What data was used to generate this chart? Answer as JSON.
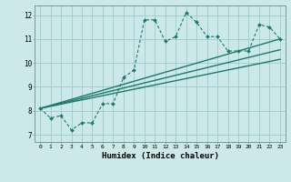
{
  "xlabel": "Humidex (Indice chaleur)",
  "bg_color": "#cce8e8",
  "grid_color": "#99cccc",
  "line_color": "#1a7a6a",
  "xlim": [
    -0.5,
    23.5
  ],
  "ylim": [
    6.7,
    12.4
  ],
  "xticks": [
    0,
    1,
    2,
    3,
    4,
    5,
    6,
    7,
    8,
    9,
    10,
    11,
    12,
    13,
    14,
    15,
    16,
    17,
    18,
    19,
    20,
    21,
    22,
    23
  ],
  "yticks": [
    7,
    8,
    9,
    10,
    11,
    12
  ],
  "series1_x": [
    0,
    1,
    2,
    3,
    4,
    5,
    6,
    7,
    8,
    9,
    10,
    11,
    12,
    13,
    14,
    15,
    16,
    17,
    18,
    19,
    20,
    21,
    22,
    23
  ],
  "series1_y": [
    8.1,
    7.7,
    7.8,
    7.2,
    7.5,
    7.5,
    8.3,
    8.3,
    9.4,
    9.7,
    11.8,
    11.8,
    10.9,
    11.1,
    12.1,
    11.7,
    11.1,
    11.1,
    10.5,
    10.5,
    10.5,
    11.6,
    11.5,
    11.0
  ],
  "series2_x": [
    0,
    23
  ],
  "series2_y": [
    8.1,
    11.0
  ],
  "series3_x": [
    0,
    23
  ],
  "series3_y": [
    8.1,
    10.55
  ],
  "series4_x": [
    0,
    23
  ],
  "series4_y": [
    8.1,
    10.15
  ]
}
